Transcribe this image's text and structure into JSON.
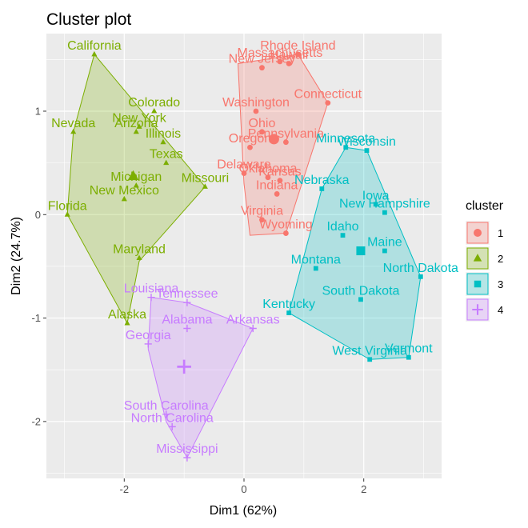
{
  "chart_data": {
    "type": "scatter",
    "title": "Cluster plot",
    "xlabel": "Dim1 (62%)",
    "ylabel": "Dim2 (24.7%)",
    "xlim": [
      -3.3,
      3.3
    ],
    "ylim": [
      -2.55,
      1.75
    ],
    "xticks": [
      -2,
      0,
      2
    ],
    "xtick_labels": [
      "-2",
      "0",
      "2"
    ],
    "yticks": [
      -2,
      -1,
      0,
      1
    ],
    "ytick_labels": [
      "-2",
      "-1",
      "0",
      "1"
    ],
    "grid": true,
    "legend_title": "cluster",
    "legend_position": "right",
    "series": [
      {
        "name": "1",
        "color": "#F8766D",
        "shape": "circle",
        "center": [
          0.5,
          0.73
        ],
        "hull": [
          [
            -0.1,
            1.46
          ],
          [
            0.9,
            1.55
          ],
          [
            1.4,
            1.08
          ],
          [
            0.7,
            -0.18
          ],
          [
            0.1,
            -0.2
          ],
          [
            0.0,
            0.3
          ]
        ],
        "points": [
          {
            "label": "Hawaii",
            "x": 0.75,
            "y": 1.46
          },
          {
            "label": "Rhode Island",
            "x": 0.9,
            "y": 1.55
          },
          {
            "label": "Massachusetts",
            "x": 0.6,
            "y": 1.48
          },
          {
            "label": "New Jersey",
            "x": 0.3,
            "y": 1.42
          },
          {
            "label": "Connecticut",
            "x": 1.4,
            "y": 1.08
          },
          {
            "label": "Washington",
            "x": 0.2,
            "y": 1.0
          },
          {
            "label": "Ohio",
            "x": 0.3,
            "y": 0.8
          },
          {
            "label": "Pennsylvania",
            "x": 0.7,
            "y": 0.7
          },
          {
            "label": "Oregon",
            "x": 0.1,
            "y": 0.65
          },
          {
            "label": "Delaware",
            "x": 0.0,
            "y": 0.4
          },
          {
            "label": "Oklahoma",
            "x": 0.4,
            "y": 0.36
          },
          {
            "label": "Kansas",
            "x": 0.6,
            "y": 0.33
          },
          {
            "label": "Indiana",
            "x": 0.55,
            "y": 0.2
          },
          {
            "label": "Virginia",
            "x": 0.3,
            "y": -0.05
          },
          {
            "label": "Wyoming",
            "x": 0.7,
            "y": -0.18
          }
        ]
      },
      {
        "name": "2",
        "color": "#7CAE00",
        "shape": "triangle",
        "center": [
          -1.85,
          0.37
        ],
        "hull": [
          [
            -2.5,
            1.55
          ],
          [
            -0.65,
            0.27
          ],
          [
            -1.75,
            -0.45
          ],
          [
            -1.95,
            -1.05
          ],
          [
            -2.95,
            0.0
          ],
          [
            -2.85,
            0.8
          ]
        ],
        "points": [
          {
            "label": "California",
            "x": -2.5,
            "y": 1.55
          },
          {
            "label": "Colorado",
            "x": -1.5,
            "y": 1.0
          },
          {
            "label": "Nevada",
            "x": -2.85,
            "y": 0.8
          },
          {
            "label": "New York",
            "x": -1.75,
            "y": 0.85
          },
          {
            "label": "Arizona",
            "x": -1.8,
            "y": 0.8
          },
          {
            "label": "Illinois",
            "x": -1.35,
            "y": 0.7
          },
          {
            "label": "Texas",
            "x": -1.3,
            "y": 0.5
          },
          {
            "label": "Missouri",
            "x": -0.65,
            "y": 0.27
          },
          {
            "label": "Michigan",
            "x": -1.8,
            "y": 0.28
          },
          {
            "label": "Florida",
            "x": -2.95,
            "y": 0.0
          },
          {
            "label": "New Mexico",
            "x": -2.0,
            "y": 0.15
          },
          {
            "label": "Maryland",
            "x": -1.75,
            "y": -0.42
          },
          {
            "label": "Alaska",
            "x": -1.95,
            "y": -1.05
          }
        ]
      },
      {
        "name": "3",
        "color": "#00BFC4",
        "shape": "square",
        "center": [
          1.95,
          -0.35
        ],
        "hull": [
          [
            1.7,
            0.65
          ],
          [
            2.05,
            0.62
          ],
          [
            2.95,
            -0.6
          ],
          [
            2.75,
            -1.38
          ],
          [
            2.1,
            -1.4
          ],
          [
            0.75,
            -0.95
          ],
          [
            1.3,
            0.25
          ]
        ],
        "points": [
          {
            "label": "Minnesota",
            "x": 1.7,
            "y": 0.65
          },
          {
            "label": "Wisconsin",
            "x": 2.05,
            "y": 0.62
          },
          {
            "label": "Nebraska",
            "x": 1.3,
            "y": 0.25
          },
          {
            "label": "Iowa",
            "x": 2.2,
            "y": 0.1
          },
          {
            "label": "New Hampshire",
            "x": 2.35,
            "y": 0.02
          },
          {
            "label": "Idaho",
            "x": 1.65,
            "y": -0.2
          },
          {
            "label": "Maine",
            "x": 2.35,
            "y": -0.35
          },
          {
            "label": "Montana",
            "x": 1.2,
            "y": -0.52
          },
          {
            "label": "North Dakota",
            "x": 2.95,
            "y": -0.6
          },
          {
            "label": "South Dakota",
            "x": 1.95,
            "y": -0.82
          },
          {
            "label": "Kentucky",
            "x": 0.75,
            "y": -0.95
          },
          {
            "label": "West Virginia",
            "x": 2.1,
            "y": -1.4
          },
          {
            "label": "Vermont",
            "x": 2.75,
            "y": -1.38
          }
        ]
      },
      {
        "name": "4",
        "color": "#C77CFF",
        "shape": "plus",
        "center": [
          -1.0,
          -1.47
        ],
        "hull": [
          [
            -1.55,
            -0.8
          ],
          [
            -0.95,
            -0.85
          ],
          [
            0.15,
            -1.1
          ],
          [
            -0.95,
            -2.35
          ],
          [
            -1.3,
            -2.0
          ],
          [
            -1.6,
            -1.3
          ]
        ],
        "points": [
          {
            "label": "Louisiana",
            "x": -1.55,
            "y": -0.8
          },
          {
            "label": "Tennessee",
            "x": -0.95,
            "y": -0.85
          },
          {
            "label": "Alabama",
            "x": -0.95,
            "y": -1.1
          },
          {
            "label": "Arkansas",
            "x": 0.15,
            "y": -1.1
          },
          {
            "label": "Georgia",
            "x": -1.6,
            "y": -1.25
          },
          {
            "label": "South Carolina",
            "x": -1.3,
            "y": -1.93
          },
          {
            "label": "North Carolina",
            "x": -1.2,
            "y": -2.05
          },
          {
            "label": "Mississippi",
            "x": -0.95,
            "y": -2.35
          }
        ]
      }
    ]
  }
}
